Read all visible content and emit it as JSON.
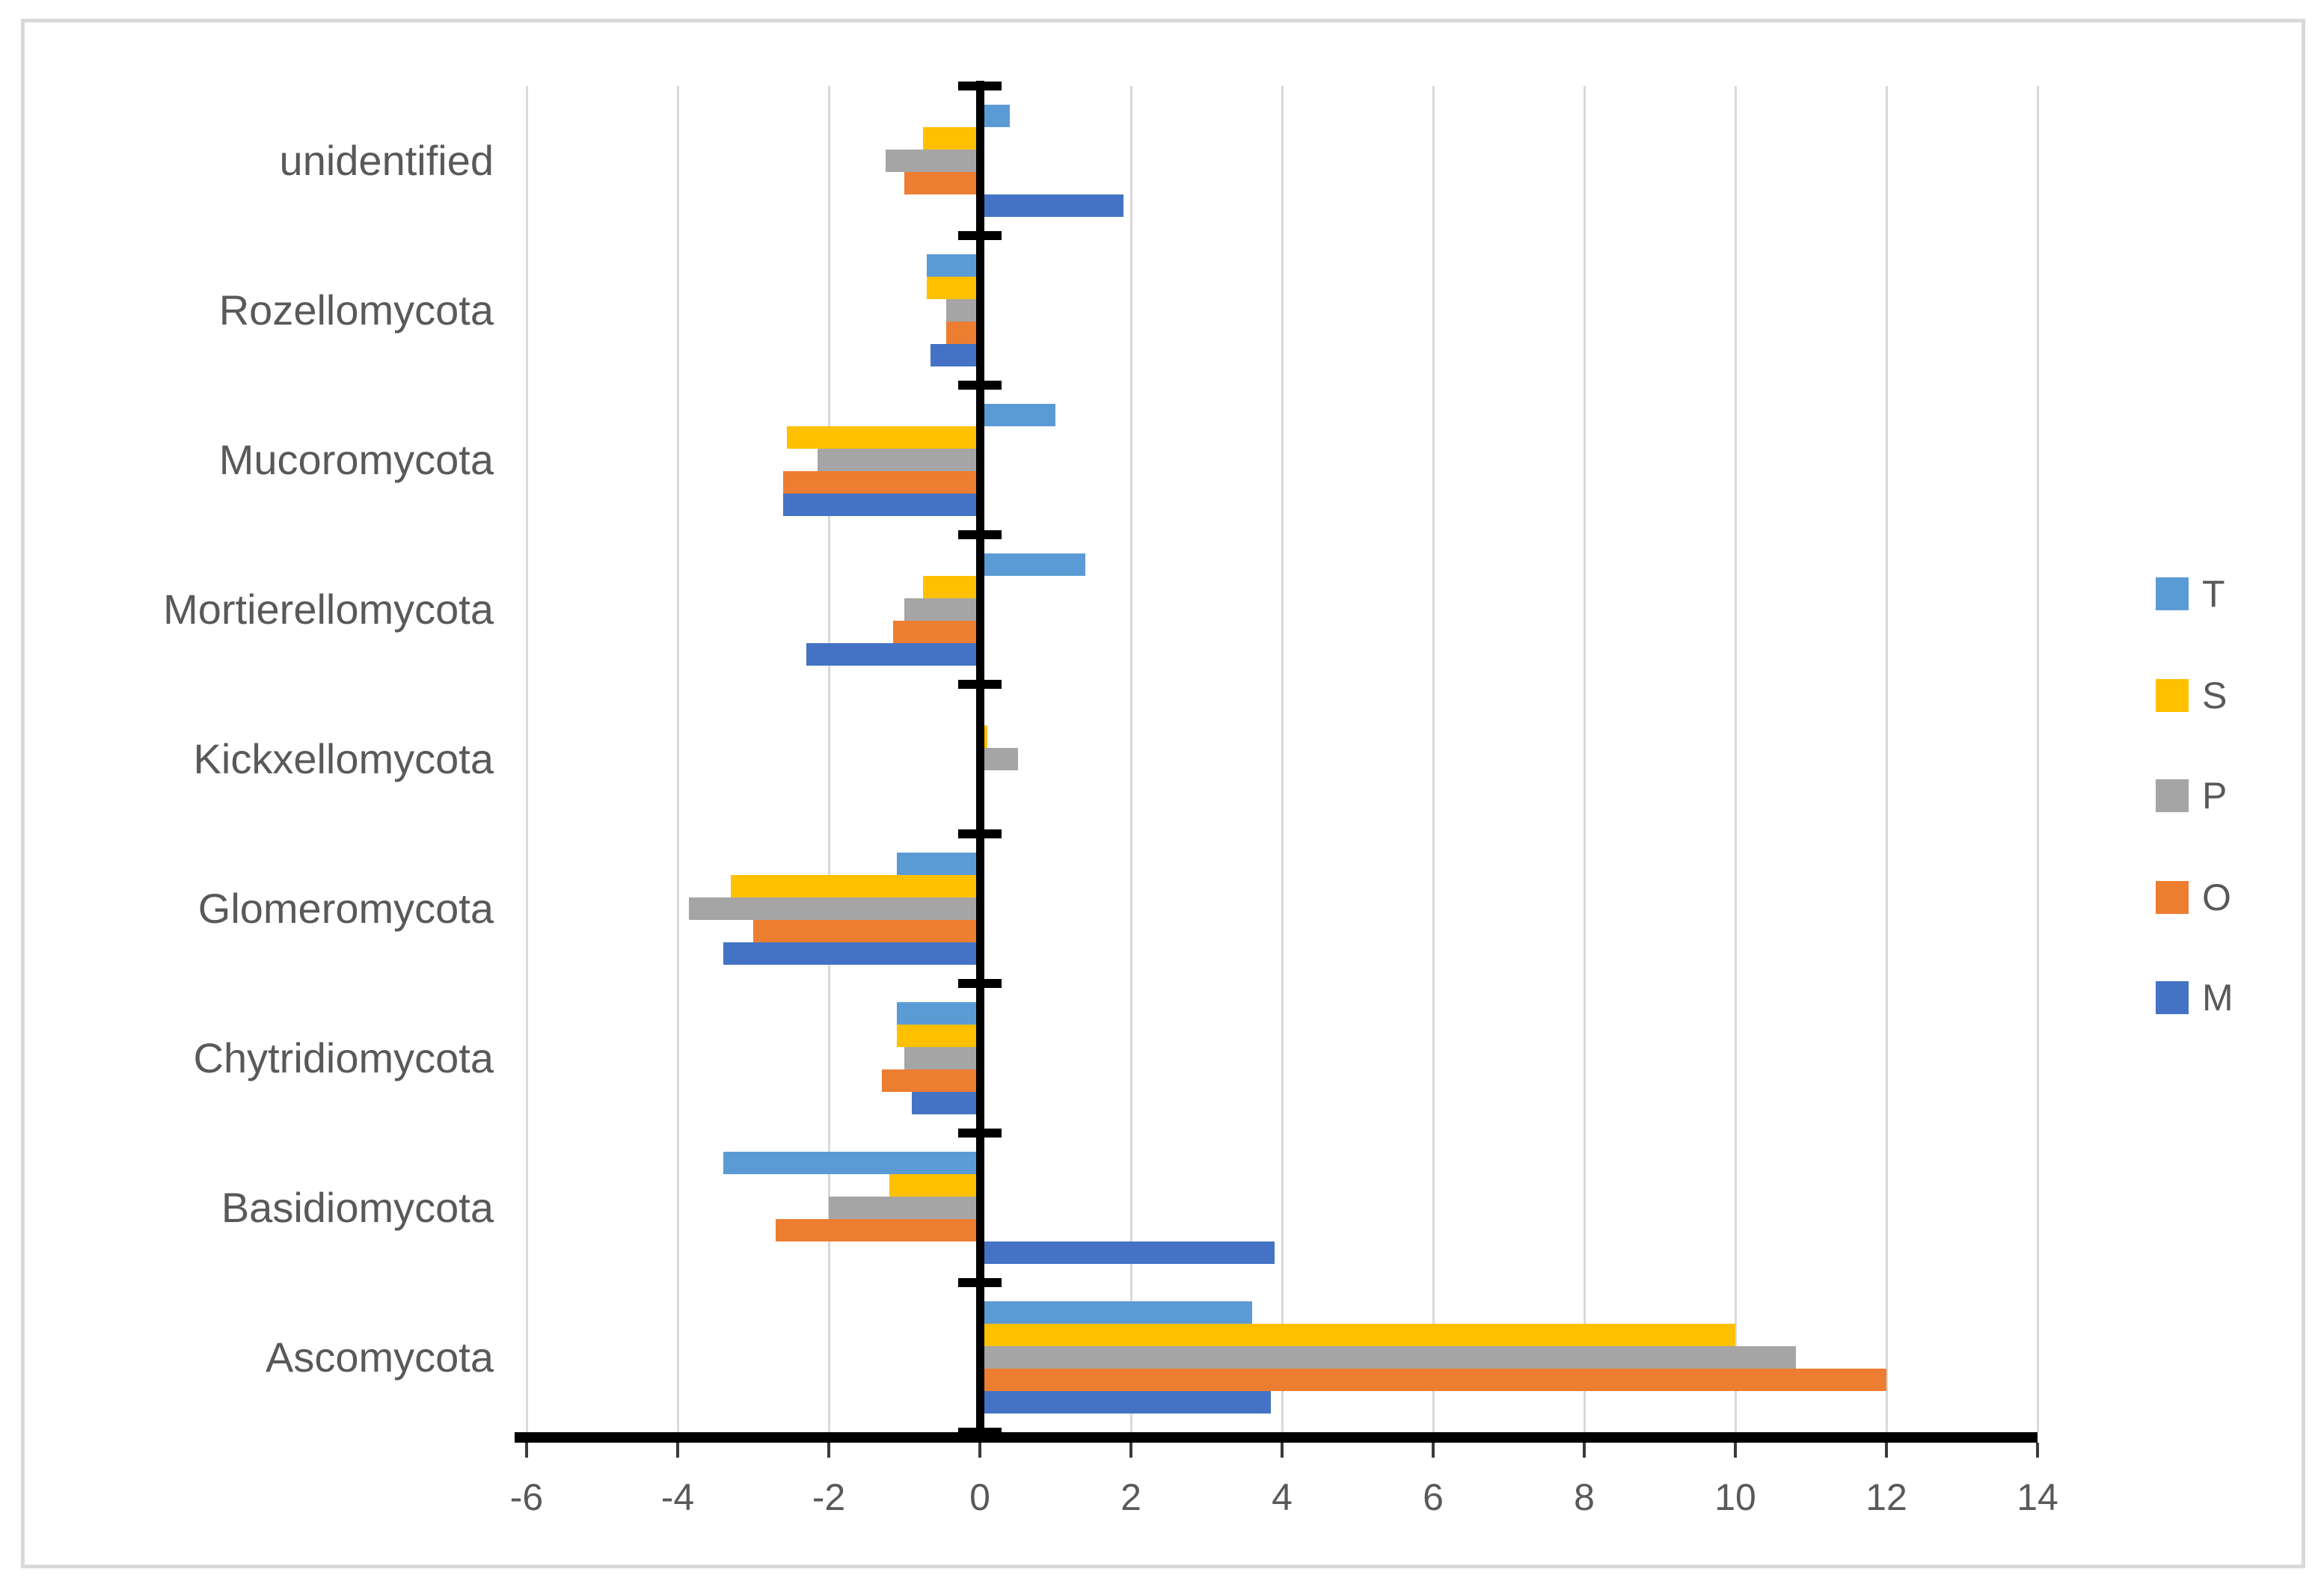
{
  "figure": {
    "background_color": "#ffffff",
    "border_color": "#d9d9d9",
    "axis_color": "#000000",
    "gridline_color": "#d9d9d9",
    "text_color": "#595959"
  },
  "chart_data": {
    "type": "bar",
    "orientation": "horizontal",
    "title": "",
    "xlabel": "",
    "ylabel": "",
    "grid": true,
    "xlim": [
      -6,
      14
    ],
    "x_ticks": [
      -6,
      -4,
      -2,
      0,
      2,
      4,
      6,
      8,
      10,
      12,
      14
    ],
    "x_tick_labels": [
      "-6",
      "-4",
      "-2",
      "0",
      "2",
      "4",
      "6",
      "8",
      "10",
      "12",
      "14"
    ],
    "categories": [
      "unidentified",
      "Rozellomycota",
      "Mucoromycota",
      "Mortierellomycota",
      "Kickxellomycota",
      "Glomeromycota",
      "Chytridiomycota",
      "Basidiomycota",
      "Ascomycota"
    ],
    "series": [
      {
        "name": "T",
        "color": "#5B9BD5",
        "values": [
          0.4,
          -0.7,
          1.0,
          1.4,
          0,
          -1.1,
          -1.1,
          -3.4,
          3.6
        ]
      },
      {
        "name": "S",
        "color": "#FFC000",
        "values": [
          -0.75,
          -0.7,
          -2.55,
          -0.75,
          0.1,
          -3.3,
          -1.1,
          -1.2,
          10.0
        ]
      },
      {
        "name": "P",
        "color": "#A5A5A5",
        "values": [
          -1.25,
          -0.45,
          -2.15,
          -1.0,
          0.5,
          -3.85,
          -1.0,
          -2.0,
          10.8
        ]
      },
      {
        "name": "O",
        "color": "#ED7D31",
        "values": [
          -1.0,
          -0.45,
          -2.6,
          -1.15,
          0,
          -3.0,
          -1.3,
          -2.7,
          12.0
        ]
      },
      {
        "name": "M",
        "color": "#4472C4",
        "values": [
          1.9,
          -0.65,
          -2.6,
          -2.3,
          0,
          -3.4,
          -0.9,
          3.9,
          3.85
        ]
      }
    ],
    "legend_position": "right",
    "legend_order": [
      "T",
      "S",
      "P",
      "O",
      "M"
    ]
  }
}
